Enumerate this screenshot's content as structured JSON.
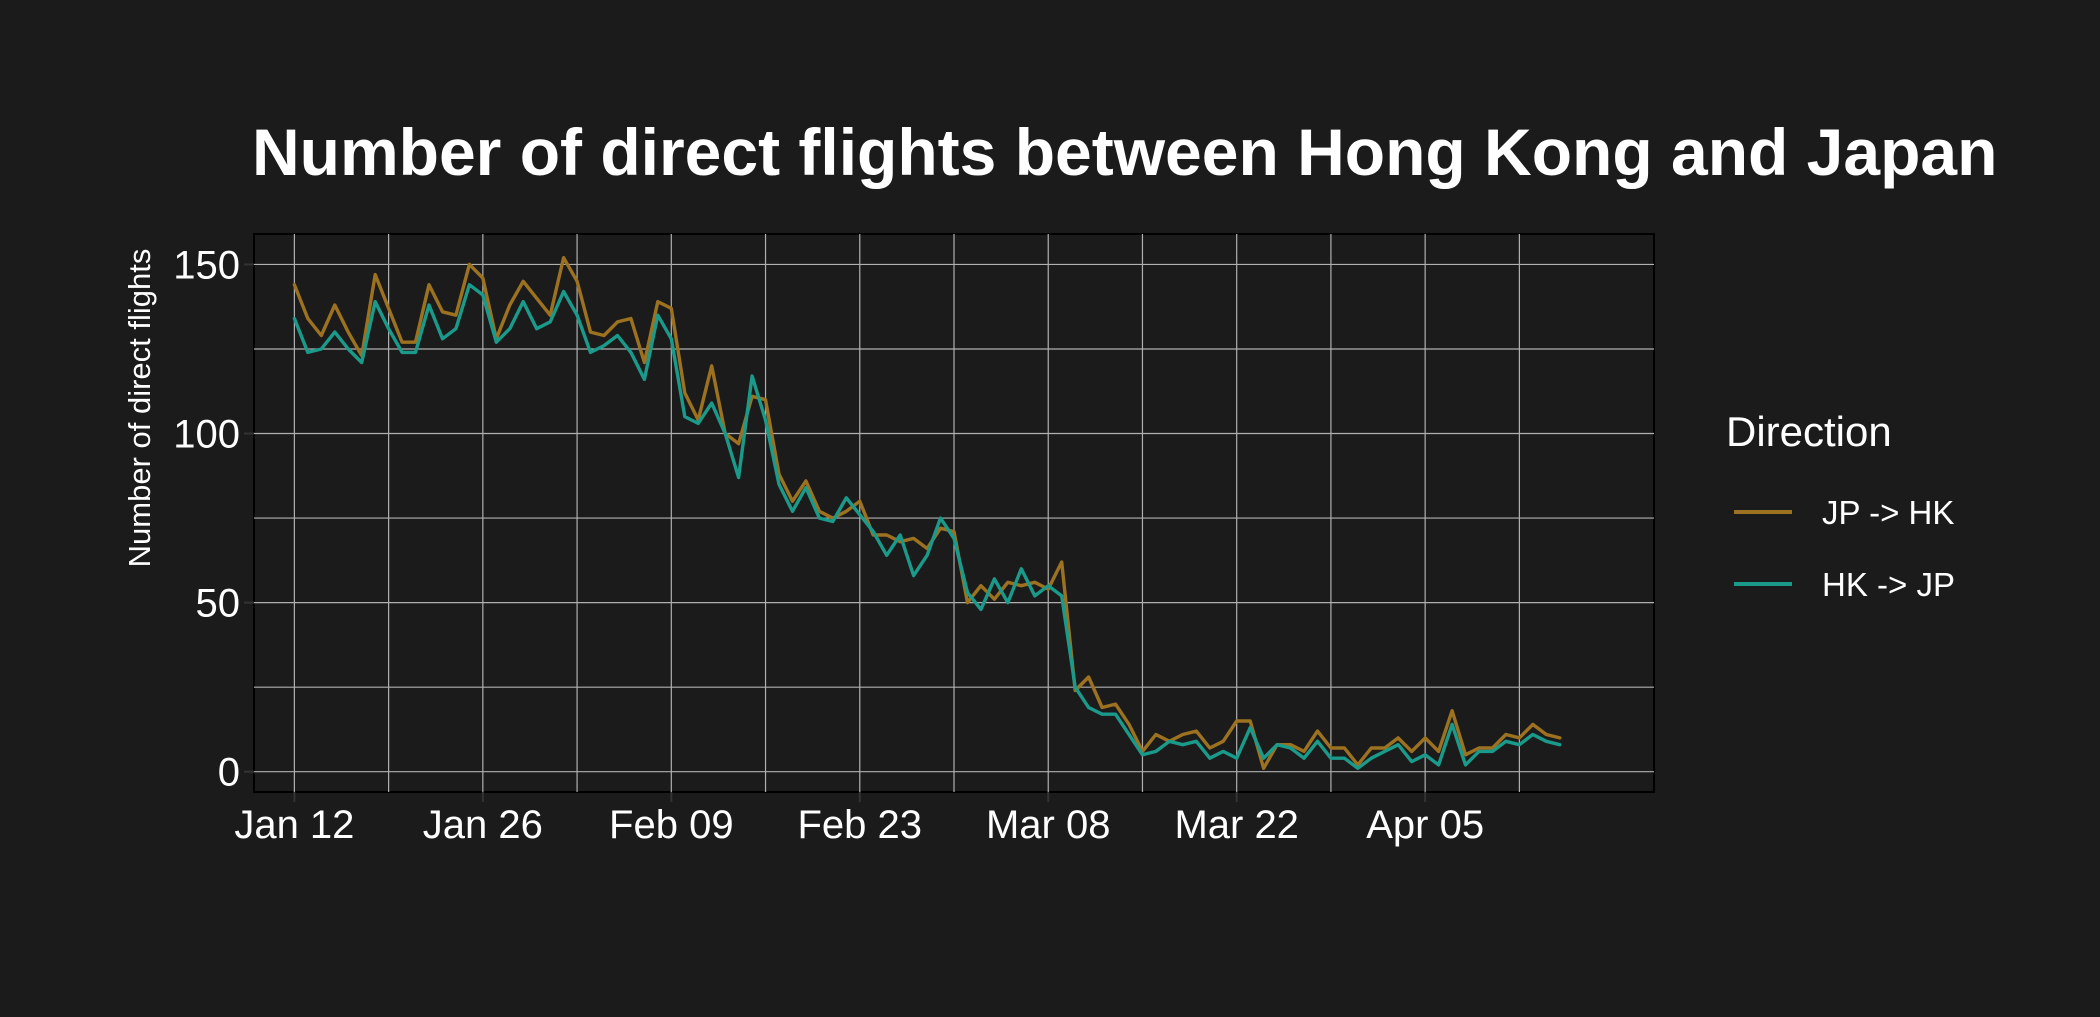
{
  "chart_data": {
    "type": "line",
    "title": "Number of direct flights between Hong Kong and Japan",
    "xlabel": "",
    "ylabel": "Number of direct flights",
    "x_start": "2020-01-12",
    "x_end": "2020-04-13",
    "xlim": [
      "2020-01-09",
      "2020-04-22"
    ],
    "ylim": [
      -6,
      159
    ],
    "x_ticks": [
      {
        "date": "2020-01-12",
        "label": "Jan 12"
      },
      {
        "date": "2020-01-26",
        "label": "Jan 26"
      },
      {
        "date": "2020-02-09",
        "label": "Feb 09"
      },
      {
        "date": "2020-02-23",
        "label": "Feb 23"
      },
      {
        "date": "2020-03-08",
        "label": "Mar 08"
      },
      {
        "date": "2020-03-22",
        "label": "Mar 22"
      },
      {
        "date": "2020-04-05",
        "label": "Apr 05"
      }
    ],
    "x_minor_ticks": [
      "2020-01-19",
      "2020-02-02",
      "2020-02-16",
      "2020-03-01",
      "2020-03-15",
      "2020-03-29",
      "2020-04-12"
    ],
    "y_ticks": [
      0,
      50,
      100,
      150
    ],
    "y_minor_ticks": [
      25,
      75,
      125
    ],
    "grid": true,
    "legend": {
      "title": "Direction",
      "position": "right"
    },
    "series": [
      {
        "name": "JP -> HK",
        "color": "#9c7220",
        "values": [
          144,
          134,
          129,
          138,
          130,
          123,
          147,
          137,
          127,
          127,
          144,
          136,
          135,
          150,
          146,
          128,
          138,
          145,
          140,
          135,
          152,
          145,
          130,
          129,
          133,
          134,
          121,
          139,
          137,
          112,
          104,
          120,
          100,
          97,
          111,
          110,
          88,
          80,
          86,
          77,
          75,
          77,
          80,
          70,
          70,
          68,
          69,
          66,
          72,
          71,
          50,
          55,
          51,
          56,
          55,
          56,
          54,
          62,
          24,
          28,
          19,
          20,
          14,
          6,
          11,
          9,
          11,
          12,
          7,
          9,
          15,
          15,
          1,
          8,
          8,
          6,
          12,
          7,
          7,
          2,
          7,
          7,
          10,
          6,
          10,
          6,
          18,
          5,
          7,
          7,
          11,
          10,
          14,
          11,
          10
        ]
      },
      {
        "name": "HK -> JP",
        "color": "#1a9a8a",
        "values": [
          134,
          124,
          125,
          130,
          125,
          121,
          139,
          131,
          124,
          124,
          138,
          128,
          131,
          144,
          141,
          127,
          131,
          139,
          131,
          133,
          142,
          135,
          124,
          126,
          129,
          124,
          116,
          135,
          128,
          105,
          103,
          109,
          100,
          87,
          117,
          104,
          85,
          77,
          84,
          75,
          74,
          81,
          76,
          71,
          64,
          70,
          58,
          64,
          75,
          69,
          53,
          48,
          57,
          50,
          60,
          52,
          55,
          52,
          25,
          19,
          17,
          17,
          11,
          5,
          6,
          9,
          8,
          9,
          4,
          6,
          4,
          13,
          4,
          8,
          7,
          4,
          9,
          4,
          4,
          1,
          4,
          6,
          8,
          3,
          5,
          2,
          14,
          2,
          6,
          6,
          9,
          8,
          11,
          9,
          8
        ]
      }
    ]
  }
}
